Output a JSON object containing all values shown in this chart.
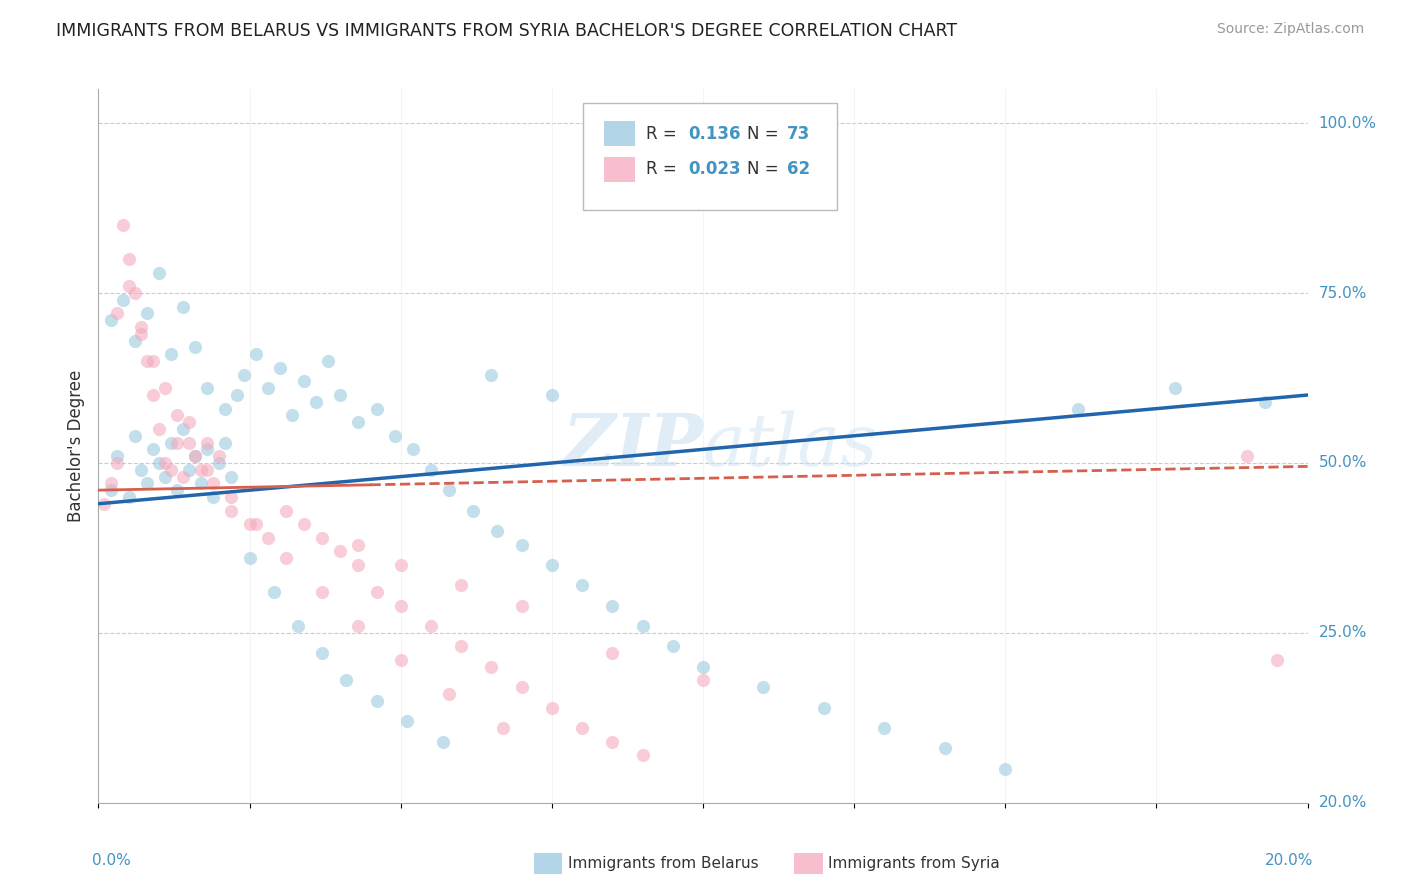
{
  "title": "IMMIGRANTS FROM BELARUS VS IMMIGRANTS FROM SYRIA BACHELOR'S DEGREE CORRELATION CHART",
  "source": "Source: ZipAtlas.com",
  "ylabel": "Bachelor's Degree",
  "watermark_text": "ZIPatlas",
  "legend_r1_label": "R = ",
  "legend_r1_val": "0.136",
  "legend_n1_label": "  N = ",
  "legend_n1_val": "73",
  "legend_r2_label": "R = ",
  "legend_r2_val": "0.023",
  "legend_n2_label": "  N = ",
  "legend_n2_val": "62",
  "belarus_color": "#92c5de",
  "syria_color": "#f4a5b8",
  "belarus_line_color": "#2166ac",
  "syria_line_color": "#d6604d",
  "r_val_color": "#4393c3",
  "n_val_color": "#d6604d",
  "axis_tick_color": "#4393c3",
  "background_color": "#ffffff",
  "grid_color": "#cccccc",
  "xlim": [
    0.0,
    0.2
  ],
  "ylim": [
    0.0,
    1.05
  ],
  "bel_scatter_x": [
    0.002,
    0.003,
    0.005,
    0.006,
    0.007,
    0.008,
    0.009,
    0.01,
    0.011,
    0.012,
    0.013,
    0.014,
    0.015,
    0.016,
    0.017,
    0.018,
    0.019,
    0.02,
    0.021,
    0.022,
    0.023,
    0.024,
    0.026,
    0.028,
    0.03,
    0.032,
    0.034,
    0.036,
    0.038,
    0.04,
    0.043,
    0.046,
    0.049,
    0.052,
    0.055,
    0.058,
    0.062,
    0.066,
    0.07,
    0.075,
    0.08,
    0.085,
    0.09,
    0.095,
    0.1,
    0.11,
    0.12,
    0.13,
    0.14,
    0.15,
    0.002,
    0.004,
    0.006,
    0.008,
    0.01,
    0.012,
    0.014,
    0.016,
    0.018,
    0.021,
    0.025,
    0.029,
    0.033,
    0.037,
    0.041,
    0.046,
    0.051,
    0.057,
    0.065,
    0.075,
    0.162,
    0.178,
    0.193
  ],
  "bel_scatter_y": [
    0.46,
    0.51,
    0.45,
    0.54,
    0.49,
    0.47,
    0.52,
    0.5,
    0.48,
    0.53,
    0.46,
    0.55,
    0.49,
    0.51,
    0.47,
    0.52,
    0.45,
    0.5,
    0.53,
    0.48,
    0.6,
    0.63,
    0.66,
    0.61,
    0.64,
    0.57,
    0.62,
    0.59,
    0.65,
    0.6,
    0.56,
    0.58,
    0.54,
    0.52,
    0.49,
    0.46,
    0.43,
    0.4,
    0.38,
    0.35,
    0.32,
    0.29,
    0.26,
    0.23,
    0.2,
    0.17,
    0.14,
    0.11,
    0.08,
    0.05,
    0.71,
    0.74,
    0.68,
    0.72,
    0.78,
    0.66,
    0.73,
    0.67,
    0.61,
    0.58,
    0.36,
    0.31,
    0.26,
    0.22,
    0.18,
    0.15,
    0.12,
    0.09,
    0.63,
    0.6,
    0.58,
    0.61,
    0.59
  ],
  "syr_scatter_x": [
    0.001,
    0.002,
    0.003,
    0.004,
    0.005,
    0.006,
    0.007,
    0.008,
    0.009,
    0.01,
    0.011,
    0.012,
    0.013,
    0.014,
    0.015,
    0.016,
    0.017,
    0.018,
    0.019,
    0.02,
    0.022,
    0.025,
    0.028,
    0.031,
    0.034,
    0.037,
    0.04,
    0.043,
    0.046,
    0.05,
    0.055,
    0.06,
    0.065,
    0.07,
    0.075,
    0.08,
    0.085,
    0.09,
    0.003,
    0.005,
    0.007,
    0.009,
    0.011,
    0.013,
    0.015,
    0.018,
    0.022,
    0.026,
    0.031,
    0.037,
    0.043,
    0.05,
    0.058,
    0.067,
    0.043,
    0.05,
    0.06,
    0.07,
    0.085,
    0.1,
    0.19,
    0.195
  ],
  "syr_scatter_y": [
    0.44,
    0.47,
    0.5,
    0.85,
    0.8,
    0.75,
    0.7,
    0.65,
    0.6,
    0.55,
    0.5,
    0.49,
    0.53,
    0.48,
    0.56,
    0.51,
    0.49,
    0.53,
    0.47,
    0.51,
    0.43,
    0.41,
    0.39,
    0.43,
    0.41,
    0.39,
    0.37,
    0.35,
    0.31,
    0.29,
    0.26,
    0.23,
    0.2,
    0.17,
    0.14,
    0.11,
    0.09,
    0.07,
    0.72,
    0.76,
    0.69,
    0.65,
    0.61,
    0.57,
    0.53,
    0.49,
    0.45,
    0.41,
    0.36,
    0.31,
    0.26,
    0.21,
    0.16,
    0.11,
    0.38,
    0.35,
    0.32,
    0.29,
    0.22,
    0.18,
    0.51,
    0.21
  ]
}
